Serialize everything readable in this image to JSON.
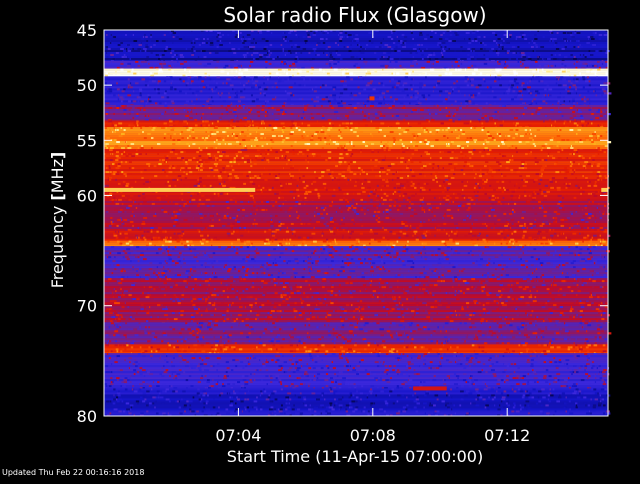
{
  "colors": {
    "background": "#000000",
    "text": "#ffffff",
    "axis": "#ffffff"
  },
  "updated_text": "Updated Thu Feb 22 00:16:16 2018",
  "chart_data": {
    "type": "heatmap",
    "title": "Solar radio Flux (Glasgow)",
    "xlabel": "Start Time (11-Apr-15 07:00:00)",
    "ylabel_prefix": "Frequency ",
    "ylabel_unit": "MHz",
    "x_unit": "minutes after 07:00",
    "xlim": [
      0,
      15
    ],
    "ylim": [
      45,
      80
    ],
    "y_reversed": true,
    "x_ticks": [
      4,
      8,
      12
    ],
    "x_tick_labels": [
      "07:04",
      "07:08",
      "07:12"
    ],
    "y_ticks": [
      45,
      50,
      55,
      60,
      70,
      80
    ],
    "y_tick_labels": [
      "45",
      "50",
      "55",
      "60",
      "70",
      "80"
    ],
    "colormap": "blue-red-yellow-white (low to high flux)",
    "colorbar": false,
    "frequency_bands": [
      {
        "from": 45,
        "to": 47.8,
        "level": 0.12
      },
      {
        "from": 47.8,
        "to": 48.5,
        "level": 0.3
      },
      {
        "from": 48.5,
        "to": 49.2,
        "level": 1.0
      },
      {
        "from": 49.2,
        "to": 51.8,
        "level": 0.22
      },
      {
        "from": 51.8,
        "to": 53.2,
        "level": 0.38
      },
      {
        "from": 53.2,
        "to": 53.8,
        "level": 0.55
      },
      {
        "from": 53.8,
        "to": 55.8,
        "level": 0.74
      },
      {
        "from": 55.8,
        "to": 58.5,
        "level": 0.56
      },
      {
        "from": 58.5,
        "to": 60.5,
        "level": 0.52
      },
      {
        "from": 60.5,
        "to": 63.2,
        "level": 0.44
      },
      {
        "from": 63.2,
        "to": 64.1,
        "level": 0.52
      },
      {
        "from": 64.1,
        "to": 64.6,
        "level": 0.7
      },
      {
        "from": 64.6,
        "to": 67.5,
        "level": 0.3
      },
      {
        "from": 67.5,
        "to": 71.5,
        "level": 0.42
      },
      {
        "from": 71.5,
        "to": 73.5,
        "level": 0.36
      },
      {
        "from": 73.5,
        "to": 74.3,
        "level": 0.6
      },
      {
        "from": 74.3,
        "to": 77.5,
        "level": 0.27
      },
      {
        "from": 77.5,
        "to": 80,
        "level": 0.17
      }
    ],
    "features": [
      {
        "x_from": 0,
        "x_to": 4.5,
        "y": 59.5,
        "level": 0.85
      },
      {
        "x_from": 14.8,
        "x_to": 15,
        "y": 59.5,
        "level": 0.85
      },
      {
        "x_from": 7.9,
        "x_to": 8.05,
        "y": 51.2,
        "level": 0.6
      },
      {
        "x_from": 9.2,
        "x_to": 10.2,
        "y": 77.5,
        "level": 0.5
      }
    ]
  }
}
